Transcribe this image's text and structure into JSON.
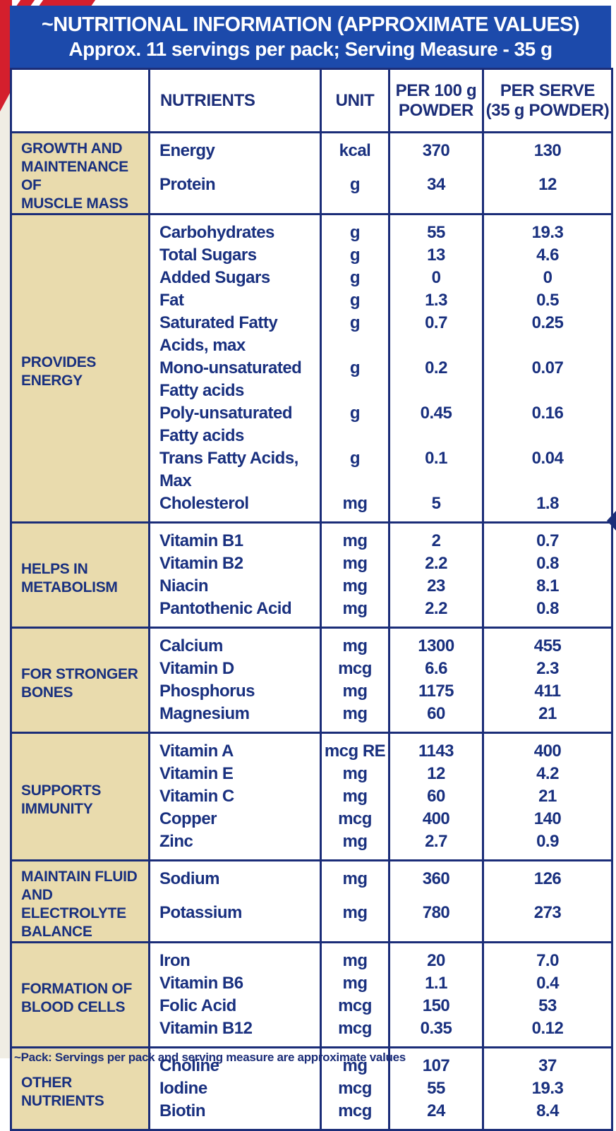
{
  "banner": {
    "title": "~NUTRITIONAL INFORMATION (APPROXIMATE VALUES)",
    "subtitle": "Approx. 11 servings per pack; Serving Measure - 35 g"
  },
  "table": {
    "headers": {
      "nutrients": "NUTRIENTS",
      "unit": "UNIT",
      "per_100g": "PER 100 g\nPOWDER",
      "per_serve": "PER SERVE\n(35 g POWDER)"
    },
    "sections": [
      {
        "category": "GROWTH AND\nMAINTENANCE OF\nMUSCLE MASS",
        "rows": [
          {
            "name": "Energy",
            "unit": "kcal",
            "per_100g": "370",
            "per_serve": "130"
          },
          {
            "name": "Protein",
            "unit": "g",
            "per_100g": "34",
            "per_serve": "12"
          }
        ]
      },
      {
        "category": "PROVIDES\nENERGY",
        "rows": [
          {
            "name": "Carbohydrates",
            "unit": "g",
            "per_100g": "55",
            "per_serve": "19.3"
          },
          {
            "name": "Total Sugars",
            "unit": "g",
            "per_100g": "13",
            "per_serve": "4.6"
          },
          {
            "name": "Added Sugars",
            "unit": "g",
            "per_100g": "0",
            "per_serve": "0"
          },
          {
            "name": "Fat",
            "unit": "g",
            "per_100g": "1.3",
            "per_serve": "0.5"
          },
          {
            "name": "Saturated Fatty\nAcids, max",
            "unit": "g",
            "per_100g": "0.7",
            "per_serve": "0.25"
          },
          {
            "name": "Mono-unsaturated\nFatty acids",
            "unit": "g",
            "per_100g": "0.2",
            "per_serve": "0.07"
          },
          {
            "name": "Poly-unsaturated\nFatty acids",
            "unit": "g",
            "per_100g": "0.45",
            "per_serve": "0.16"
          },
          {
            "name": "Trans Fatty Acids, Max",
            "unit": "g",
            "per_100g": "0.1",
            "per_serve": "0.04"
          },
          {
            "name": "Cholesterol",
            "unit": "mg",
            "per_100g": "5",
            "per_serve": "1.8"
          }
        ]
      },
      {
        "category": "HELPS IN\nMETABOLISM",
        "rows": [
          {
            "name": "Vitamin B1",
            "unit": "mg",
            "per_100g": "2",
            "per_serve": "0.7"
          },
          {
            "name": "Vitamin B2",
            "unit": "mg",
            "per_100g": "2.2",
            "per_serve": "0.8"
          },
          {
            "name": "Niacin",
            "unit": "mg",
            "per_100g": "23",
            "per_serve": "8.1"
          },
          {
            "name": "Pantothenic Acid",
            "unit": "mg",
            "per_100g": "2.2",
            "per_serve": "0.8"
          }
        ]
      },
      {
        "category": "FOR STRONGER\nBONES",
        "rows": [
          {
            "name": "Calcium",
            "unit": "mg",
            "per_100g": "1300",
            "per_serve": "455"
          },
          {
            "name": "Vitamin D",
            "unit": "mcg",
            "per_100g": "6.6",
            "per_serve": "2.3"
          },
          {
            "name": "Phosphorus",
            "unit": "mg",
            "per_100g": "1175",
            "per_serve": "411"
          },
          {
            "name": "Magnesium",
            "unit": "mg",
            "per_100g": "60",
            "per_serve": "21"
          }
        ]
      },
      {
        "category": "SUPPORTS\nIMMUNITY",
        "rows": [
          {
            "name": "Vitamin A",
            "unit": "mcg RE",
            "per_100g": "1143",
            "per_serve": "400"
          },
          {
            "name": "Vitamin E",
            "unit": "mg",
            "per_100g": "12",
            "per_serve": "4.2"
          },
          {
            "name": "Vitamin C",
            "unit": "mg",
            "per_100g": "60",
            "per_serve": "21"
          },
          {
            "name": "Copper",
            "unit": "mcg",
            "per_100g": "400",
            "per_serve": "140"
          },
          {
            "name": "Zinc",
            "unit": "mg",
            "per_100g": "2.7",
            "per_serve": "0.9"
          }
        ]
      },
      {
        "category": "MAINTAIN FLUID\nAND ELECTROLYTE\nBALANCE",
        "rows": [
          {
            "name": "Sodium",
            "unit": "mg",
            "per_100g": "360",
            "per_serve": "126"
          },
          {
            "name": "Potassium",
            "unit": "mg",
            "per_100g": "780",
            "per_serve": "273"
          }
        ]
      },
      {
        "category": "FORMATION OF\nBLOOD CELLS",
        "rows": [
          {
            "name": "Iron",
            "unit": "mg",
            "per_100g": "20",
            "per_serve": "7.0"
          },
          {
            "name": "Vitamin B6",
            "unit": "mg",
            "per_100g": "1.1",
            "per_serve": "0.4"
          },
          {
            "name": "Folic Acid",
            "unit": "mcg",
            "per_100g": "150",
            "per_serve": "53"
          },
          {
            "name": "Vitamin B12",
            "unit": "mcg",
            "per_100g": "0.35",
            "per_serve": "0.12"
          }
        ]
      },
      {
        "category": "OTHER\nNUTRIENTS",
        "rows": [
          {
            "name": "Choline",
            "unit": "mg",
            "per_100g": "107",
            "per_serve": "37"
          },
          {
            "name": "Iodine",
            "unit": "mcg",
            "per_100g": "55",
            "per_serve": "19.3"
          },
          {
            "name": "Biotin",
            "unit": "mcg",
            "per_100g": "24",
            "per_serve": "8.4"
          }
        ]
      }
    ]
  },
  "footnote": "~Pack: Servings per pack and serving measure are approximate values",
  "colors": {
    "banner_blue": "#1c4aab",
    "navy_text_border": "#1b2d78",
    "category_tan": "#e9dbad",
    "accent_red": "#d41f2d",
    "background": "#ffffff"
  }
}
